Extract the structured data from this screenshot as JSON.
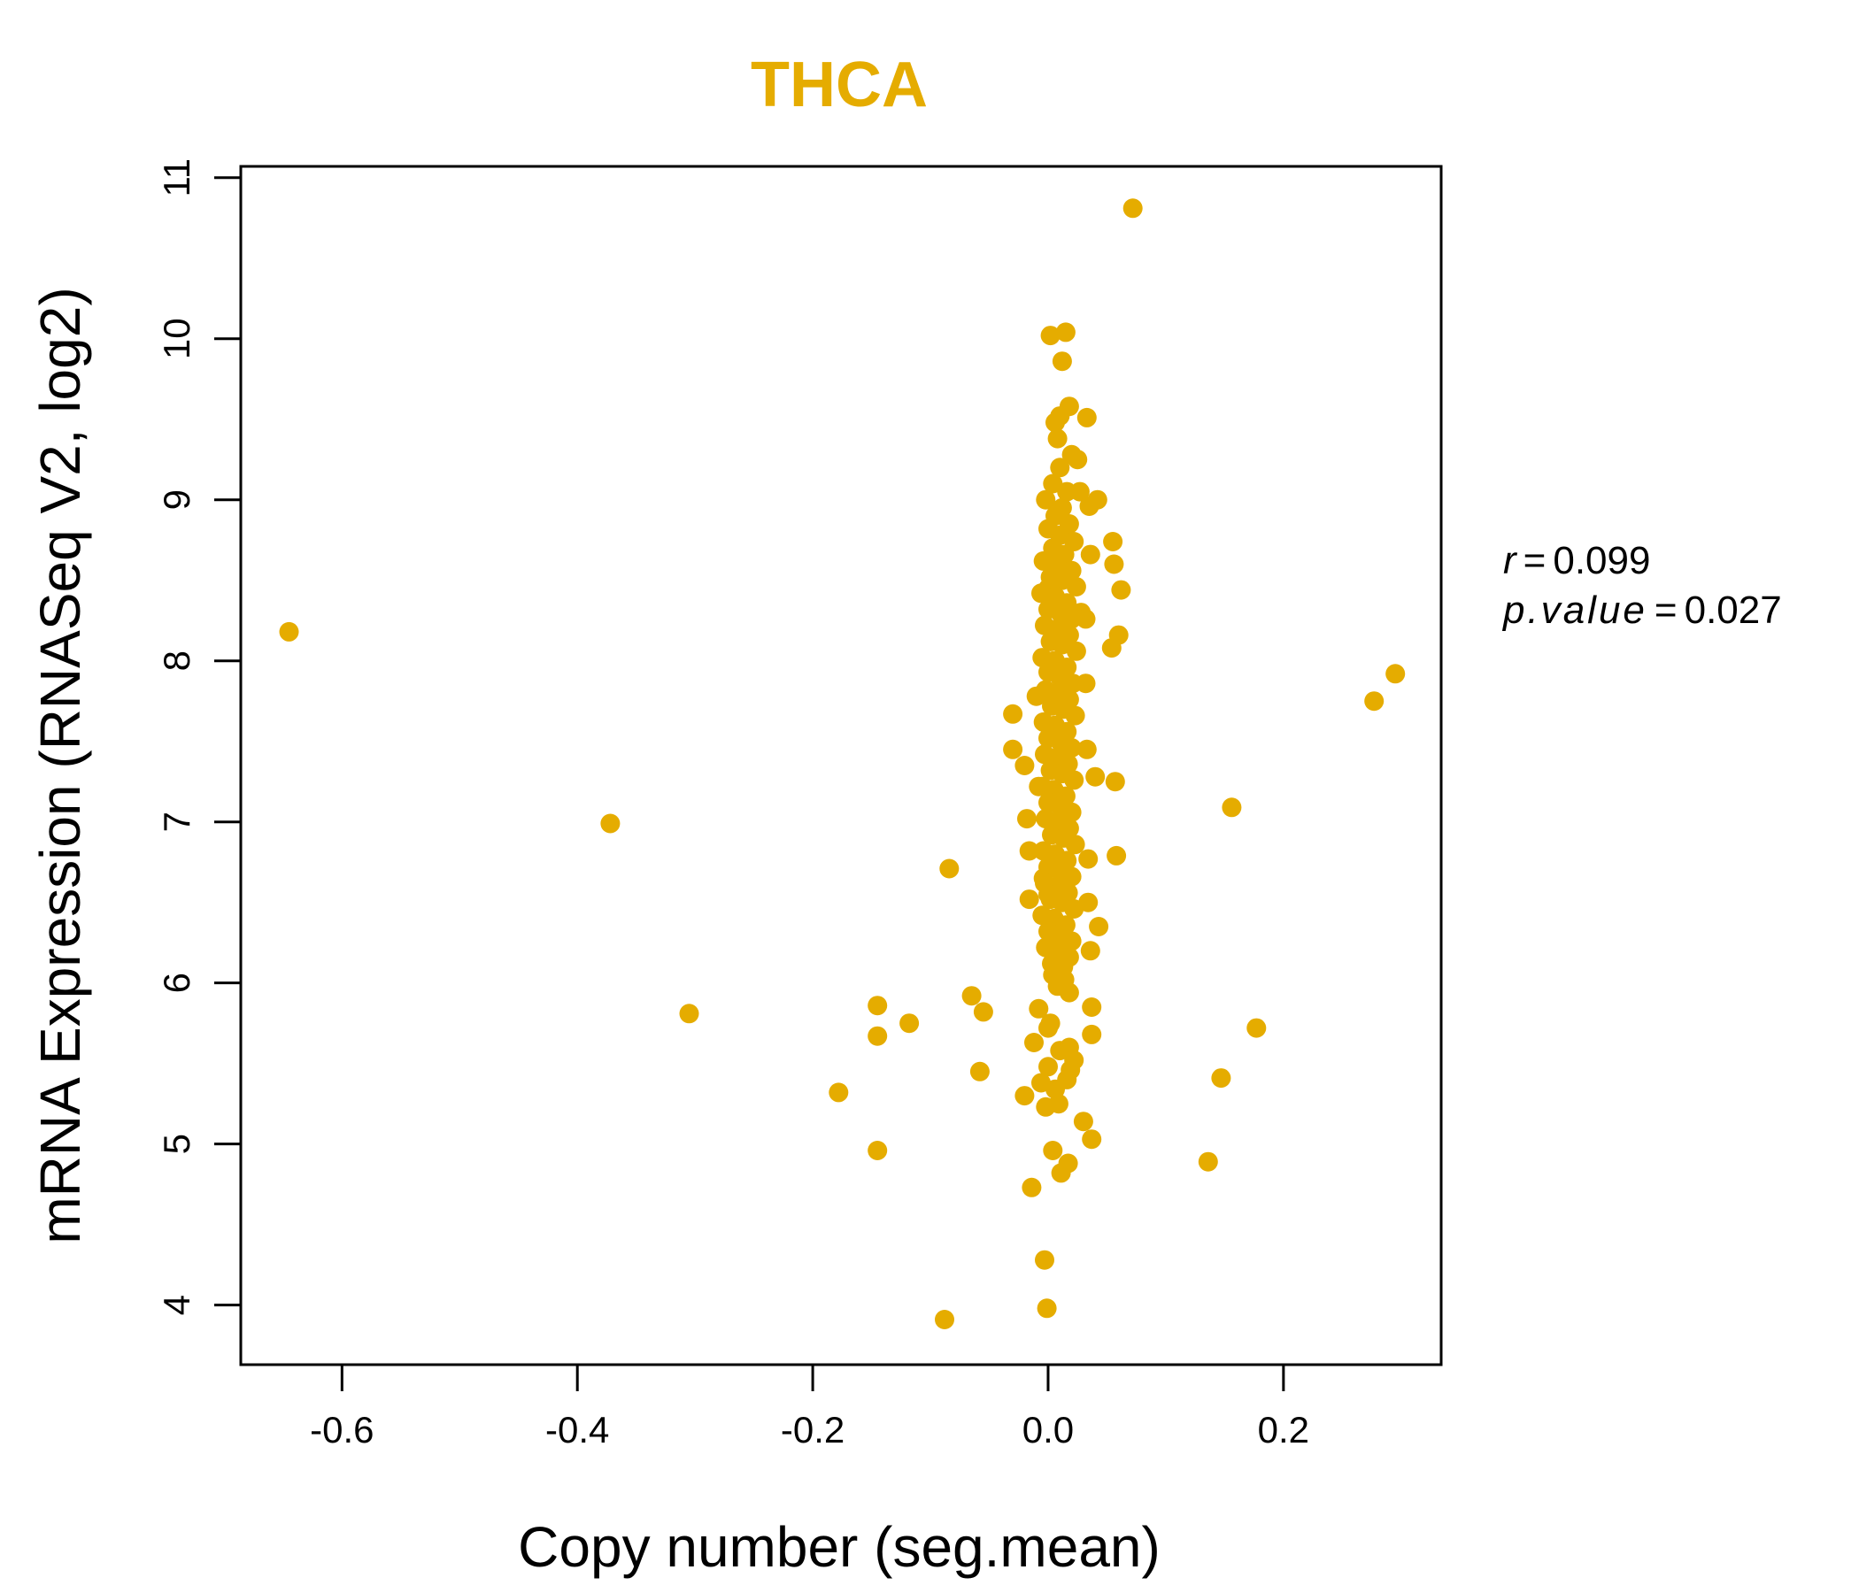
{
  "chart_data": {
    "type": "scatter",
    "title": "THCA",
    "xlabel": "Copy number (seg.mean)",
    "ylabel": "mRNA Expression (RNASeq V2, log2)",
    "xlim": [
      -0.686,
      0.334
    ],
    "ylim": [
      3.63,
      11.07
    ],
    "x_ticks": [
      -0.6,
      -0.4,
      -0.2,
      0.0,
      0.2
    ],
    "x_tick_labels": [
      "-0.6",
      "-0.4",
      "-0.2",
      "0.0",
      "0.2"
    ],
    "y_ticks": [
      4,
      5,
      6,
      7,
      8,
      9,
      10,
      11
    ],
    "y_tick_labels": [
      "4",
      "5",
      "6",
      "7",
      "8",
      "9",
      "10",
      "11"
    ],
    "grid": false,
    "point_color": "#E5AC00",
    "title_color": "#E5AC00",
    "stats": {
      "r_label": "r",
      "r_value": "0.099",
      "p_label": "p.value",
      "p_value": "0.027"
    },
    "points": [
      [
        -0.645,
        8.18
      ],
      [
        -0.372,
        6.99
      ],
      [
        -0.305,
        5.81
      ],
      [
        -0.178,
        5.32
      ],
      [
        -0.145,
        5.86
      ],
      [
        -0.145,
        5.67
      ],
      [
        -0.145,
        4.96
      ],
      [
        -0.118,
        5.75
      ],
      [
        -0.088,
        3.91
      ],
      [
        -0.084,
        6.71
      ],
      [
        -0.065,
        5.92
      ],
      [
        -0.058,
        5.45
      ],
      [
        -0.055,
        5.82
      ],
      [
        -0.03,
        7.67
      ],
      [
        -0.03,
        7.45
      ],
      [
        -0.02,
        7.35
      ],
      [
        -0.02,
        5.3
      ],
      [
        -0.018,
        7.02
      ],
      [
        -0.016,
        6.82
      ],
      [
        -0.016,
        6.52
      ],
      [
        -0.014,
        4.73
      ],
      [
        -0.012,
        5.63
      ],
      [
        -0.01,
        7.78
      ],
      [
        -0.008,
        5.84
      ],
      [
        -0.008,
        7.22
      ],
      [
        -0.006,
        5.38
      ],
      [
        -0.004,
        6.65
      ],
      [
        -0.003,
        4.28
      ],
      [
        -0.002,
        5.23
      ],
      [
        -0.001,
        3.98
      ],
      [
        0.0,
        8.45
      ],
      [
        0.0,
        5.48
      ],
      [
        0.002,
        10.02
      ],
      [
        0.002,
        5.75
      ],
      [
        0.004,
        4.96
      ],
      [
        0.005,
        6.25
      ],
      [
        0.006,
        9.48
      ],
      [
        0.008,
        9.38
      ],
      [
        0.009,
        5.25
      ],
      [
        0.01,
        9.52
      ],
      [
        0.011,
        4.82
      ],
      [
        0.012,
        9.86
      ],
      [
        0.015,
        10.04
      ],
      [
        0.016,
        5.4
      ],
      [
        0.017,
        4.88
      ],
      [
        0.018,
        9.58
      ],
      [
        0.018,
        5.6
      ],
      [
        0.02,
        9.28
      ],
      [
        0.025,
        9.25
      ],
      [
        0.027,
        9.05
      ],
      [
        0.028,
        8.3
      ],
      [
        0.03,
        5.14
      ],
      [
        0.032,
        8.26
      ],
      [
        0.032,
        7.86
      ],
      [
        0.033,
        7.45
      ],
      [
        0.033,
        9.51
      ],
      [
        0.034,
        6.5
      ],
      [
        0.034,
        6.77
      ],
      [
        0.035,
        8.96
      ],
      [
        0.036,
        6.2
      ],
      [
        0.036,
        8.66
      ],
      [
        0.037,
        5.85
      ],
      [
        0.037,
        5.68
      ],
      [
        0.037,
        5.03
      ],
      [
        0.04,
        7.28
      ],
      [
        0.042,
        9.0
      ],
      [
        0.043,
        6.35
      ],
      [
        0.054,
        8.08
      ],
      [
        0.055,
        8.74
      ],
      [
        0.056,
        8.6
      ],
      [
        0.057,
        7.25
      ],
      [
        0.058,
        6.79
      ],
      [
        0.06,
        8.16
      ],
      [
        0.062,
        8.44
      ],
      [
        0.072,
        10.81
      ],
      [
        0.136,
        4.89
      ],
      [
        0.147,
        5.41
      ],
      [
        0.156,
        7.09
      ],
      [
        0.177,
        5.72
      ],
      [
        0.277,
        7.75
      ],
      [
        0.295,
        7.92
      ],
      [
        0.01,
        9.2
      ],
      [
        0.004,
        9.1
      ],
      [
        0.016,
        9.05
      ],
      [
        -0.002,
        9.0
      ],
      [
        0.012,
        8.95
      ],
      [
        0.006,
        8.9
      ],
      [
        0.018,
        8.85
      ],
      [
        0.0,
        8.82
      ],
      [
        0.01,
        8.78
      ],
      [
        0.022,
        8.74
      ],
      [
        0.004,
        8.7
      ],
      [
        0.014,
        8.66
      ],
      [
        -0.004,
        8.62
      ],
      [
        0.008,
        8.6
      ],
      [
        0.02,
        8.56
      ],
      [
        0.002,
        8.52
      ],
      [
        0.012,
        8.5
      ],
      [
        0.024,
        8.46
      ],
      [
        -0.006,
        8.42
      ],
      [
        0.006,
        8.4
      ],
      [
        0.016,
        8.36
      ],
      [
        0.0,
        8.32
      ],
      [
        0.01,
        8.3
      ],
      [
        0.02,
        8.26
      ],
      [
        -0.003,
        8.22
      ],
      [
        0.008,
        8.2
      ],
      [
        0.018,
        8.16
      ],
      [
        0.002,
        8.12
      ],
      [
        0.012,
        8.1
      ],
      [
        0.024,
        8.06
      ],
      [
        -0.005,
        8.02
      ],
      [
        0.006,
        8.0
      ],
      [
        0.016,
        7.96
      ],
      [
        0.0,
        7.93
      ],
      [
        0.01,
        7.9
      ],
      [
        0.021,
        7.86
      ],
      [
        -0.002,
        7.82
      ],
      [
        0.008,
        7.8
      ],
      [
        0.018,
        7.76
      ],
      [
        0.003,
        7.72
      ],
      [
        0.013,
        7.7
      ],
      [
        0.023,
        7.66
      ],
      [
        -0.004,
        7.62
      ],
      [
        0.006,
        7.6
      ],
      [
        0.016,
        7.56
      ],
      [
        0.0,
        7.52
      ],
      [
        0.01,
        7.5
      ],
      [
        0.02,
        7.46
      ],
      [
        -0.003,
        7.42
      ],
      [
        0.007,
        7.4
      ],
      [
        0.017,
        7.36
      ],
      [
        0.002,
        7.32
      ],
      [
        0.012,
        7.3
      ],
      [
        0.022,
        7.26
      ],
      [
        -0.005,
        7.22
      ],
      [
        0.005,
        7.2
      ],
      [
        0.015,
        7.16
      ],
      [
        0.0,
        7.12
      ],
      [
        0.01,
        7.1
      ],
      [
        0.02,
        7.06
      ],
      [
        -0.002,
        7.02
      ],
      [
        0.008,
        7.0
      ],
      [
        0.018,
        6.96
      ],
      [
        0.003,
        6.92
      ],
      [
        0.013,
        6.9
      ],
      [
        0.023,
        6.86
      ],
      [
        -0.004,
        6.82
      ],
      [
        0.006,
        6.8
      ],
      [
        0.016,
        6.76
      ],
      [
        0.0,
        6.72
      ],
      [
        0.01,
        6.7
      ],
      [
        0.02,
        6.66
      ],
      [
        -0.003,
        6.62
      ],
      [
        0.007,
        6.6
      ],
      [
        0.017,
        6.56
      ],
      [
        0.002,
        6.52
      ],
      [
        0.012,
        6.5
      ],
      [
        0.022,
        6.46
      ],
      [
        -0.005,
        6.42
      ],
      [
        0.005,
        6.4
      ],
      [
        0.015,
        6.36
      ],
      [
        0.0,
        6.32
      ],
      [
        0.01,
        6.3
      ],
      [
        0.02,
        6.26
      ],
      [
        -0.002,
        6.22
      ],
      [
        0.008,
        6.2
      ],
      [
        0.018,
        6.16
      ],
      [
        0.003,
        6.12
      ],
      [
        0.013,
        6.1
      ],
      [
        0.004,
        6.05
      ],
      [
        0.014,
        6.02
      ],
      [
        0.008,
        5.98
      ],
      [
        0.018,
        5.94
      ],
      [
        0.0,
        5.72
      ],
      [
        0.01,
        5.58
      ],
      [
        0.022,
        5.52
      ],
      [
        0.006,
        5.34
      ],
      [
        0.019,
        5.46
      ],
      [
        0.0,
        6.55
      ],
      [
        0.01,
        8.55
      ],
      [
        0.005,
        8.0
      ],
      [
        0.014,
        7.75
      ]
    ]
  }
}
